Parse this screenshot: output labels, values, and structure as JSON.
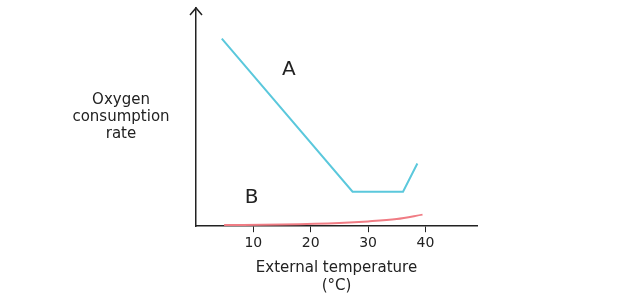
{
  "chart_data": {
    "type": "line",
    "x_label": [
      "External temperature",
      "(°C)"
    ],
    "y_label": [
      "Oxygen",
      "consumption",
      "rate"
    ],
    "xlim": [
      0,
      49
    ],
    "xticks": [
      10,
      20,
      30,
      40
    ],
    "ylim": [
      0,
      100
    ],
    "tick_labels": "x",
    "grid": false,
    "series": [
      {
        "color": "#5bc8dc",
        "x": [
          4.5,
          27.3,
          36.1,
          38.6
        ],
        "values": [
          86,
          15.8,
          15.8,
          28.7
        ]
      },
      {
        "color": "#f07c84",
        "x": [
          4.9,
          15,
          25,
          30,
          35,
          39.5
        ],
        "values": [
          0.5,
          0.8,
          1.5,
          2.2,
          3.3,
          5.3
        ]
      }
    ],
    "annotations": [
      {
        "text": "A",
        "x": 16.2,
        "y": 71.8
      },
      {
        "text": "B",
        "x": 9.7,
        "y": 12.9
      }
    ]
  }
}
